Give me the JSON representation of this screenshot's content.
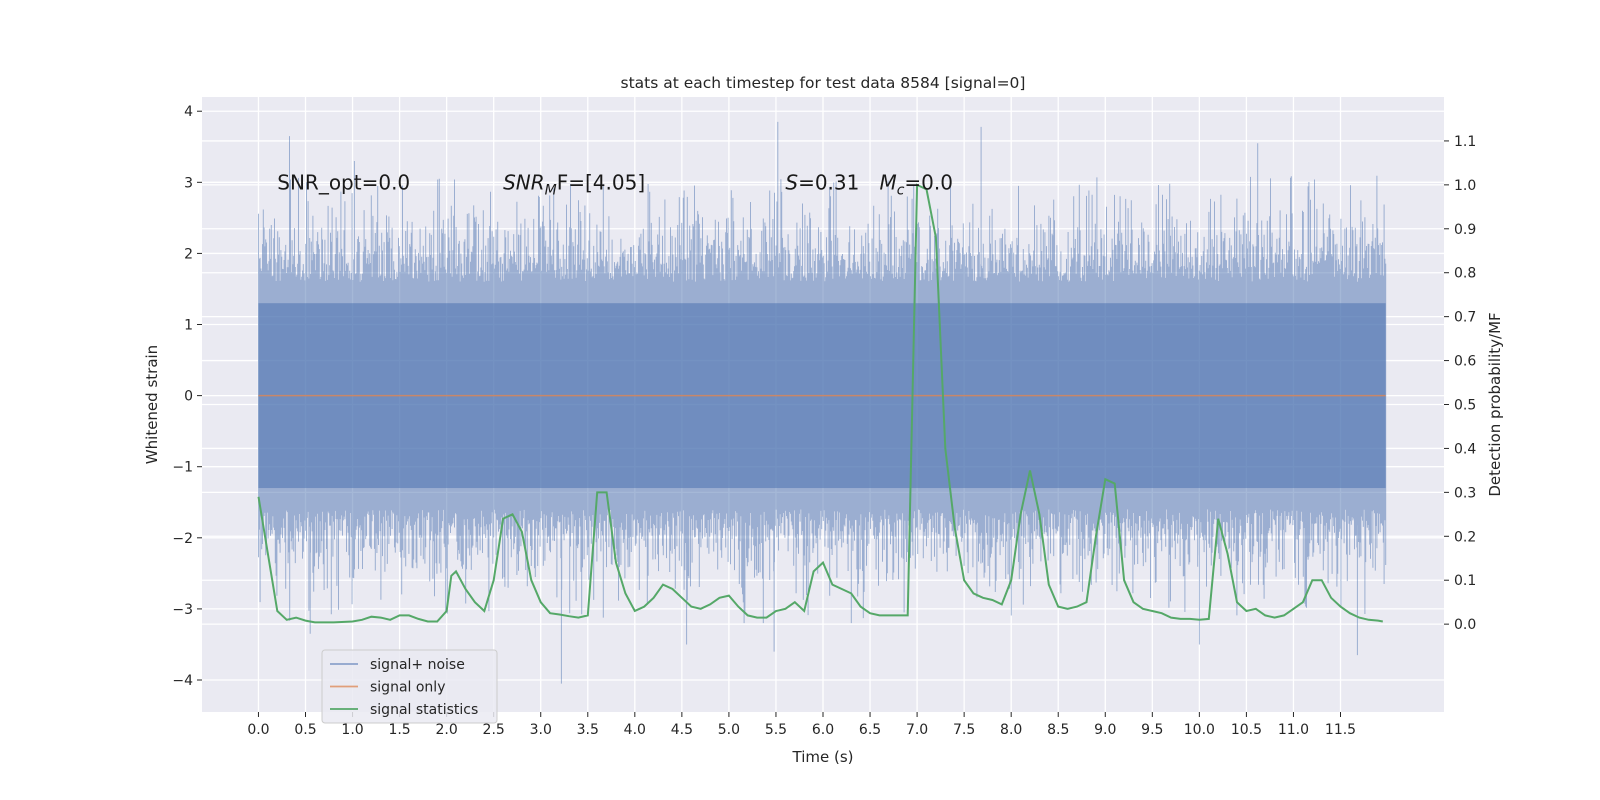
{
  "chart_data": {
    "type": "line",
    "title": "stats at each timestep for test data 8584 [signal=0]",
    "xlabel": "Time (s)",
    "ylabel": "Whitened strain",
    "ylabel_right": "Detection probability/MF",
    "xlim": [
      -0.6,
      12.6
    ],
    "ylim": [
      -4.45,
      4.2
    ],
    "ylim_right": [
      -0.2,
      1.2
    ],
    "x_ticks": [
      0.0,
      0.5,
      1.0,
      1.5,
      2.0,
      2.5,
      3.0,
      3.5,
      4.0,
      4.5,
      5.0,
      5.5,
      6.0,
      6.5,
      7.0,
      7.5,
      8.0,
      8.5,
      9.0,
      9.5,
      10.0,
      10.5,
      11.0,
      11.5
    ],
    "x_tick_labels": [
      "0.0",
      "0.5",
      "1.0",
      "1.5",
      "2.0",
      "2.5",
      "3.0",
      "3.5",
      "4.0",
      "4.5",
      "5.0",
      "5.5",
      "6.0",
      "6.5",
      "7.0",
      "7.5",
      "8.0",
      "8.5",
      "9.0",
      "9.5",
      "10.0",
      "10.5",
      "11.0",
      "11.5"
    ],
    "y_ticks": [
      -4,
      -3,
      -2,
      -1,
      0,
      1,
      2,
      3,
      4
    ],
    "y_tick_labels": [
      "−4",
      "−3",
      "−2",
      "−1",
      "0",
      "1",
      "2",
      "3",
      "4"
    ],
    "y_ticks_right": [
      0.0,
      0.1,
      0.2,
      0.3,
      0.4,
      0.5,
      0.6,
      0.7,
      0.8,
      0.9,
      1.0,
      1.1
    ],
    "y_tick_labels_right": [
      "0.0",
      "0.1",
      "0.2",
      "0.3",
      "0.4",
      "0.5",
      "0.6",
      "0.7",
      "0.8",
      "0.9",
      "1.0",
      "1.1"
    ],
    "grid": true,
    "legend_position": "lower-left",
    "noise": {
      "t_start": 0.0,
      "t_end": 11.98,
      "core_range": [
        -1.3,
        1.3
      ],
      "typical_range": [
        -2.2,
        2.2
      ],
      "extremes": [
        [
          0.33,
          3.65
        ],
        [
          1.02,
          3.3
        ],
        [
          5.52,
          3.85
        ],
        [
          7.68,
          3.78
        ],
        [
          10.62,
          3.55
        ],
        [
          3.22,
          -4.05
        ],
        [
          4.55,
          -3.5
        ],
        [
          5.48,
          -3.6
        ],
        [
          10.0,
          -3.5
        ],
        [
          11.68,
          -3.65
        ],
        [
          0.55,
          -3.35
        ]
      ]
    },
    "annotations": [
      {
        "text": "SNR_opt=0.0",
        "x": 0.2,
        "y": 3.0
      },
      {
        "base": "SNR",
        "sub": "M",
        "rest": "F=[4.05]",
        "italic_base": true,
        "x": 2.6,
        "y": 3.0
      },
      {
        "base": "S",
        "rest": "=0.31",
        "italic_base": true,
        "x": 5.6,
        "y": 3.0
      },
      {
        "base": "M",
        "sub": "c",
        "rest": "=0.0",
        "italic_base": true,
        "x": 6.6,
        "y": 3.0
      }
    ],
    "series": [
      {
        "name": "signal+ noise",
        "color": "#4c72b0",
        "axis": "left"
      },
      {
        "name": "signal only",
        "color": "#dd8452",
        "axis": "left",
        "x": [
          0.0,
          11.98
        ],
        "y": [
          0.0,
          0.0
        ]
      },
      {
        "name": "signal statistics",
        "color": "#55a868",
        "axis": "right",
        "x": [
          0.0,
          0.1,
          0.2,
          0.3,
          0.4,
          0.5,
          0.6,
          0.8,
          1.0,
          1.1,
          1.2,
          1.3,
          1.4,
          1.5,
          1.6,
          1.7,
          1.8,
          1.9,
          2.0,
          2.05,
          2.1,
          2.2,
          2.3,
          2.4,
          2.5,
          2.6,
          2.7,
          2.8,
          2.9,
          3.0,
          3.1,
          3.2,
          3.3,
          3.4,
          3.5,
          3.6,
          3.7,
          3.8,
          3.9,
          4.0,
          4.1,
          4.2,
          4.3,
          4.4,
          4.5,
          4.6,
          4.7,
          4.8,
          4.9,
          5.0,
          5.1,
          5.2,
          5.3,
          5.4,
          5.5,
          5.6,
          5.7,
          5.8,
          5.9,
          6.0,
          6.1,
          6.2,
          6.3,
          6.4,
          6.5,
          6.6,
          6.7,
          6.8,
          6.9,
          7.0,
          7.1,
          7.2,
          7.3,
          7.4,
          7.5,
          7.6,
          7.7,
          7.8,
          7.9,
          8.0,
          8.1,
          8.2,
          8.3,
          8.4,
          8.5,
          8.6,
          8.7,
          8.8,
          8.9,
          9.0,
          9.1,
          9.2,
          9.3,
          9.4,
          9.5,
          9.6,
          9.7,
          9.8,
          9.9,
          10.0,
          10.1,
          10.2,
          10.3,
          10.4,
          10.5,
          10.6,
          10.7,
          10.8,
          10.9,
          11.0,
          11.1,
          11.2,
          11.3,
          11.4,
          11.5,
          11.6,
          11.7,
          11.8,
          11.9,
          11.95
        ],
        "y": [
          0.29,
          0.16,
          0.03,
          0.01,
          0.015,
          0.008,
          0.004,
          0.004,
          0.006,
          0.01,
          0.017,
          0.015,
          0.01,
          0.02,
          0.02,
          0.012,
          0.006,
          0.006,
          0.03,
          0.11,
          0.12,
          0.08,
          0.05,
          0.03,
          0.1,
          0.24,
          0.25,
          0.21,
          0.1,
          0.05,
          0.025,
          0.022,
          0.018,
          0.015,
          0.02,
          0.3,
          0.3,
          0.14,
          0.07,
          0.03,
          0.04,
          0.06,
          0.09,
          0.08,
          0.06,
          0.04,
          0.035,
          0.045,
          0.06,
          0.065,
          0.04,
          0.02,
          0.015,
          0.015,
          0.03,
          0.035,
          0.05,
          0.03,
          0.12,
          0.14,
          0.09,
          0.08,
          0.07,
          0.04,
          0.025,
          0.02,
          0.02,
          0.02,
          0.02,
          1.0,
          0.99,
          0.88,
          0.4,
          0.22,
          0.1,
          0.07,
          0.06,
          0.055,
          0.045,
          0.1,
          0.25,
          0.35,
          0.25,
          0.09,
          0.04,
          0.035,
          0.04,
          0.05,
          0.2,
          0.33,
          0.32,
          0.1,
          0.05,
          0.035,
          0.03,
          0.025,
          0.015,
          0.012,
          0.012,
          0.01,
          0.012,
          0.24,
          0.16,
          0.05,
          0.03,
          0.035,
          0.02,
          0.015,
          0.02,
          0.035,
          0.05,
          0.1,
          0.1,
          0.06,
          0.04,
          0.025,
          0.015,
          0.01,
          0.008,
          0.006
        ]
      }
    ]
  }
}
